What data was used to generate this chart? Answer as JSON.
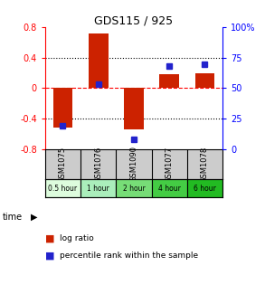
{
  "title": "GDS115 / 925",
  "samples": [
    "GSM1075",
    "GSM1076",
    "GSM1090",
    "GSM1077",
    "GSM1078"
  ],
  "time_labels": [
    "0.5 hour",
    "1 hour",
    "2 hour",
    "4 hour",
    "6 hour"
  ],
  "time_colors": [
    "#ddfcdd",
    "#aaeebb",
    "#77dd77",
    "#44cc44",
    "#22bb22"
  ],
  "log_ratios": [
    -0.52,
    0.72,
    -0.54,
    0.18,
    0.19
  ],
  "percentile_ranks": [
    19,
    53,
    8,
    68,
    70
  ],
  "bar_color": "#cc2200",
  "dot_color": "#2222cc",
  "ylim_left": [
    -0.8,
    0.8
  ],
  "ylim_right": [
    0,
    100
  ],
  "yticks_left": [
    -0.8,
    -0.4,
    0,
    0.4,
    0.8
  ],
  "yticks_right": [
    0,
    25,
    50,
    75,
    100
  ],
  "ytick_labels_left": [
    "-0.8",
    "-0.4",
    "0",
    "0.4",
    "0.8"
  ],
  "ytick_labels_right": [
    "0",
    "25",
    "50",
    "75",
    "100%"
  ],
  "bg_color": "#ffffff",
  "sample_bg_color": "#cccccc",
  "bar_width": 0.55
}
